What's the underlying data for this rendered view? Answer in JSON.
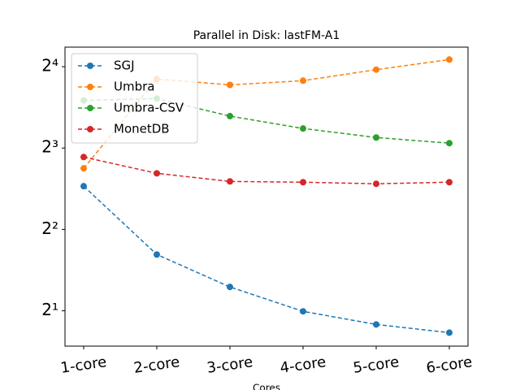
{
  "chart_data": {
    "type": "line",
    "title": "Parallel in Disk: lastFM-A1",
    "x_label": "Cores",
    "categories": [
      "1-core",
      "2-core",
      "3-core",
      "4-core",
      "5-core",
      "6-core"
    ],
    "series": [
      {
        "name": "SGJ",
        "color": "#1f77b4",
        "values": [
          5.78,
          3.23,
          2.45,
          1.99,
          1.78,
          1.66
        ]
      },
      {
        "name": "Umbra",
        "color": "#ff7f0e",
        "values": [
          6.73,
          14.4,
          13.7,
          14.2,
          15.6,
          17.0
        ]
      },
      {
        "name": "Umbra-CSV",
        "color": "#2ca02c",
        "values": [
          12.0,
          12.2,
          10.5,
          9.45,
          8.75,
          8.34
        ]
      },
      {
        "name": "MonetDB",
        "color": "#d62728",
        "values": [
          7.41,
          6.45,
          6.02,
          5.98,
          5.9,
          5.98
        ]
      }
    ],
    "ylim": [
      1.48,
      18.9
    ],
    "log_scale_y": 2,
    "yticks": [
      {
        "value": 2,
        "label": "2¹"
      },
      {
        "value": 4,
        "label": "2²"
      },
      {
        "value": 8,
        "label": "2³"
      },
      {
        "value": 16,
        "label": "2⁴"
      }
    ],
    "legend": "upper left"
  }
}
